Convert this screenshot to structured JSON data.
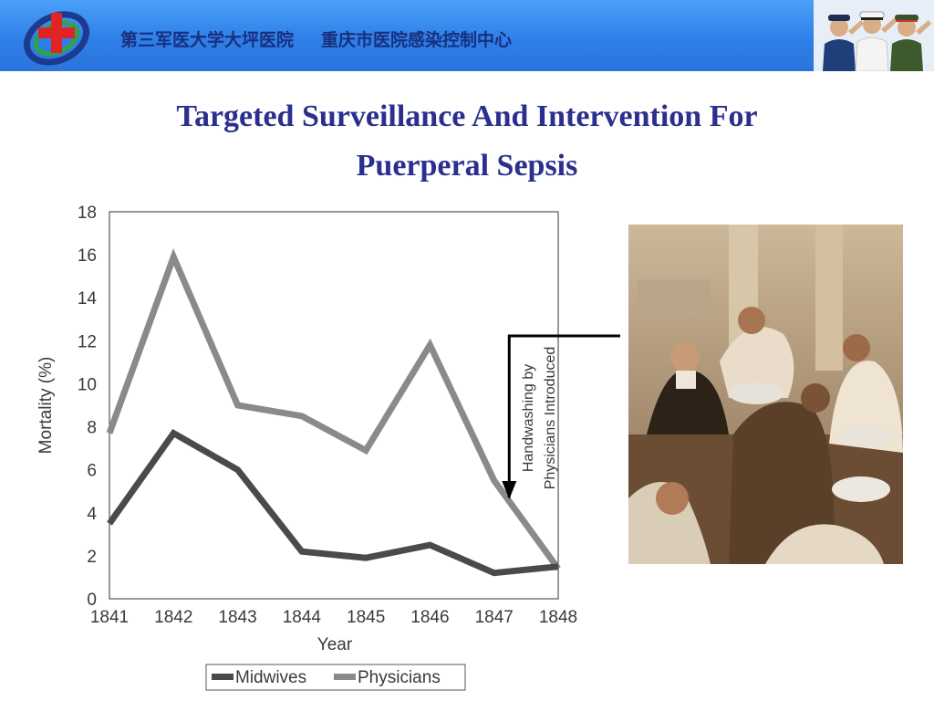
{
  "header": {
    "text1": "第三军医大学大坪医院",
    "text2": "重庆市医院感染控制中心",
    "colors": {
      "bar_top": "#4aa0f7",
      "bar_bottom": "#2a74dc",
      "text": "#17307f"
    }
  },
  "slide": {
    "title_line1": "Targeted Surveillance And Intervention For",
    "title_line2": "Puerperal Sepsis",
    "title_color": "#2b2f8e"
  },
  "chart_data": {
    "type": "line",
    "x": [
      "1841",
      "1842",
      "1843",
      "1844",
      "1845",
      "1846",
      "1847",
      "1848"
    ],
    "xlabel": "Year",
    "ylabel": "Mortality (%)",
    "ylim": [
      0,
      18
    ],
    "yticks": [
      "0",
      "2",
      "4",
      "6",
      "8",
      "10",
      "12",
      "14",
      "16",
      "18"
    ],
    "grid": false,
    "legend_position": "bottom",
    "series": [
      {
        "name": "Midwives",
        "values": [
          3.5,
          7.7,
          6.0,
          2.2,
          1.9,
          2.5,
          1.2,
          1.5
        ],
        "color": "#4a4a4a"
      },
      {
        "name": "Physicians",
        "values": [
          7.7,
          15.9,
          9.0,
          8.5,
          6.9,
          11.8,
          5.5,
          1.4
        ],
        "color": "#8a8a8a"
      }
    ],
    "annotation": {
      "line1": "Handwashing by",
      "line2": "Physicians Introduced",
      "year": "1847",
      "x_value": 7.25
    }
  }
}
